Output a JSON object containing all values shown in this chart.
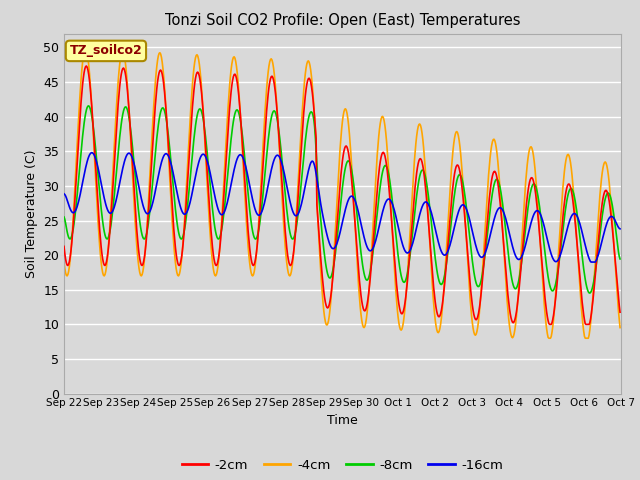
{
  "title": "Tonzi Soil CO2 Profile: Open (East) Temperatures",
  "ylabel": "Soil Temperature (C)",
  "xlabel": "Time",
  "watermark": "TZ_soilco2",
  "ylim": [
    0,
    52
  ],
  "yticks": [
    0,
    5,
    10,
    15,
    20,
    25,
    30,
    35,
    40,
    45,
    50
  ],
  "legend": [
    "-2cm",
    "-4cm",
    "-8cm",
    "-16cm"
  ],
  "colors": [
    "#ff0000",
    "#ffa500",
    "#00cc00",
    "#0000ee"
  ],
  "background_color": "#d8d8d8",
  "plot_bg_color": "#d9d9d9",
  "grid_color": "#ffffff",
  "x_labels": [
    "Sep 22",
    "Sep 23",
    "Sep 24",
    "Sep 25",
    "Sep 26",
    "Sep 27",
    "Sep 28",
    "Sep 29",
    "Sep 30",
    "Oct 1",
    "Oct 2",
    "Oct 3",
    "Oct 4",
    "Oct 5",
    "Oct 6",
    "Oct 7"
  ]
}
